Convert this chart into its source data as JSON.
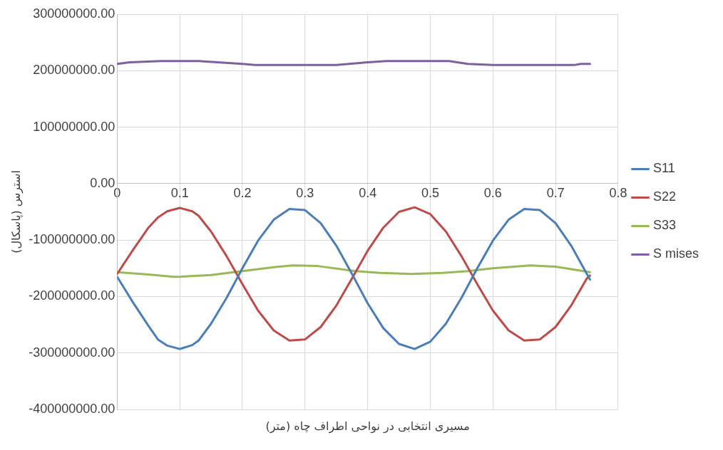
{
  "chart_data": {
    "type": "line",
    "xlabel": "مسیری انتخابی در نواحی اطراف چاه (متر)",
    "ylabel": "استرس (پاسکال)",
    "x": [
      0,
      0.025,
      0.05,
      0.065,
      0.08,
      0.1,
      0.12,
      0.13,
      0.15,
      0.175,
      0.2,
      0.225,
      0.25,
      0.275,
      0.3,
      0.325,
      0.35,
      0.375,
      0.4,
      0.425,
      0.45,
      0.475,
      0.5,
      0.525,
      0.55,
      0.575,
      0.6,
      0.625,
      0.65,
      0.675,
      0.7,
      0.725,
      0.75,
      0.755
    ],
    "series": [
      {
        "name": "S11",
        "color": "#4a7ebb",
        "values": [
          -165000000,
          -210000000,
          -252000000,
          -276000000,
          -287000000,
          -293000000,
          -286000000,
          -278000000,
          -248000000,
          -202000000,
          -150000000,
          -101000000,
          -64000000,
          -45000000,
          -47000000,
          -70000000,
          -110000000,
          -160000000,
          -212000000,
          -256000000,
          -284000000,
          -293000000,
          -280000000,
          -248000000,
          -202000000,
          -150000000,
          -101000000,
          -64000000,
          -45000000,
          -47000000,
          -70000000,
          -110000000,
          -160000000,
          -170000000
        ]
      },
      {
        "name": "S22",
        "color": "#be4b48",
        "values": [
          -160000000,
          -118000000,
          -78000000,
          -60000000,
          -49000000,
          -43000000,
          -49000000,
          -57000000,
          -85000000,
          -129000000,
          -178000000,
          -225000000,
          -260000000,
          -278000000,
          -276000000,
          -254000000,
          -216000000,
          -168000000,
          -119000000,
          -78000000,
          -50000000,
          -42000000,
          -54000000,
          -85000000,
          -129000000,
          -178000000,
          -225000000,
          -260000000,
          -278000000,
          -276000000,
          -254000000,
          -216000000,
          -168000000,
          -163000000
        ]
      },
      {
        "name": "S33",
        "color": "#98b954",
        "x": [
          0,
          0.05,
          0.09,
          0.1,
          0.15,
          0.2,
          0.25,
          0.28,
          0.32,
          0.38,
          0.42,
          0.47,
          0.52,
          0.56,
          0.6,
          0.66,
          0.7,
          0.755
        ],
        "values": [
          -157000000,
          -161000000,
          -165000000,
          -165000000,
          -162000000,
          -155000000,
          -148000000,
          -145000000,
          -146000000,
          -155000000,
          -158000000,
          -160000000,
          -158000000,
          -155000000,
          -150000000,
          -145000000,
          -147000000,
          -157000000
        ]
      },
      {
        "name": "S mises",
        "color": "#7d60a0",
        "x": [
          0,
          0.02,
          0.07,
          0.13,
          0.2,
          0.22,
          0.35,
          0.37,
          0.4,
          0.43,
          0.53,
          0.56,
          0.6,
          0.73,
          0.74,
          0.755
        ],
        "values": [
          212000000,
          215000000,
          217000000,
          217000000,
          212000000,
          210000000,
          210000000,
          212000000,
          215000000,
          217000000,
          217000000,
          212000000,
          210000000,
          210000000,
          212000000,
          212000000
        ]
      }
    ],
    "xlim": [
      0,
      0.8
    ],
    "xticks": [
      0,
      0.1,
      0.2,
      0.3,
      0.4,
      0.5,
      0.6,
      0.7,
      0.8
    ],
    "ylim": [
      -400000000,
      300000000
    ],
    "yticks": [
      {
        "value": 300000000,
        "label": "300000000.00"
      },
      {
        "value": 200000000,
        "label": "200000000.00"
      },
      {
        "value": 100000000,
        "label": "100000000.00"
      },
      {
        "value": 0,
        "label": "0.00"
      },
      {
        "value": -100000000,
        "label": "-100000000.00"
      },
      {
        "value": -200000000,
        "label": "-200000000.00"
      },
      {
        "value": -300000000,
        "label": "-300000000.00"
      },
      {
        "value": -400000000,
        "label": "-400000000.00"
      }
    ],
    "grid": true,
    "legend": "right"
  }
}
